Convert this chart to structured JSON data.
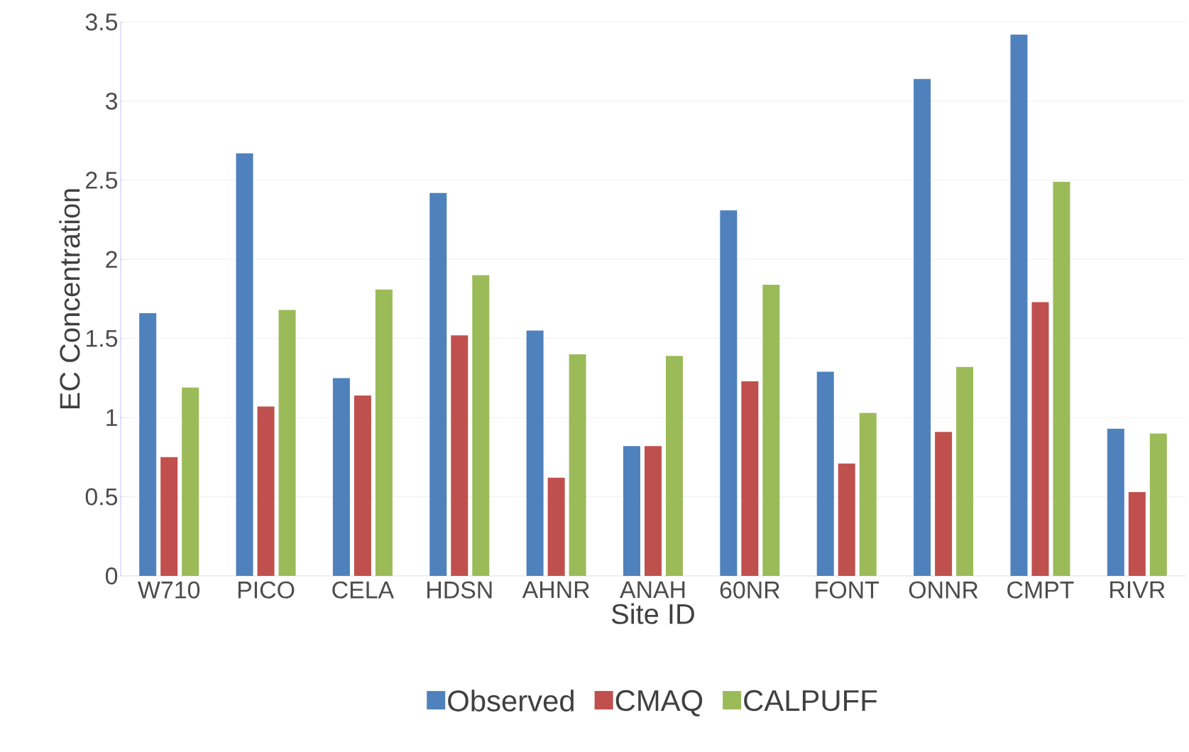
{
  "chart_data": {
    "type": "bar",
    "xlabel": "Site ID",
    "ylabel": "EC Concentration",
    "categories": [
      "W710",
      "PICO",
      "CELA",
      "HDSN",
      "AHNR",
      "ANAH",
      "60NR",
      "FONT",
      "ONNR",
      "CMPT",
      "RIVR"
    ],
    "series": [
      {
        "name": "Observed",
        "color": "#4f81bd",
        "values": [
          1.66,
          2.67,
          1.25,
          2.42,
          1.55,
          0.82,
          2.31,
          1.29,
          3.14,
          3.42,
          0.93
        ]
      },
      {
        "name": "CMAQ",
        "color": "#c0504d",
        "values": [
          0.75,
          1.07,
          1.14,
          1.52,
          0.62,
          0.82,
          1.23,
          0.71,
          0.91,
          1.73,
          0.53
        ]
      },
      {
        "name": "CALPUFF",
        "color": "#9bbb59",
        "values": [
          1.19,
          1.68,
          1.81,
          1.9,
          1.4,
          1.39,
          1.84,
          1.03,
          1.32,
          2.49,
          0.9
        ]
      }
    ],
    "ylim": [
      0,
      3.5
    ],
    "yticks": [
      0,
      0.5,
      1,
      1.5,
      2,
      2.5,
      3,
      3.5
    ],
    "grid": "y",
    "legend": "bottom"
  }
}
